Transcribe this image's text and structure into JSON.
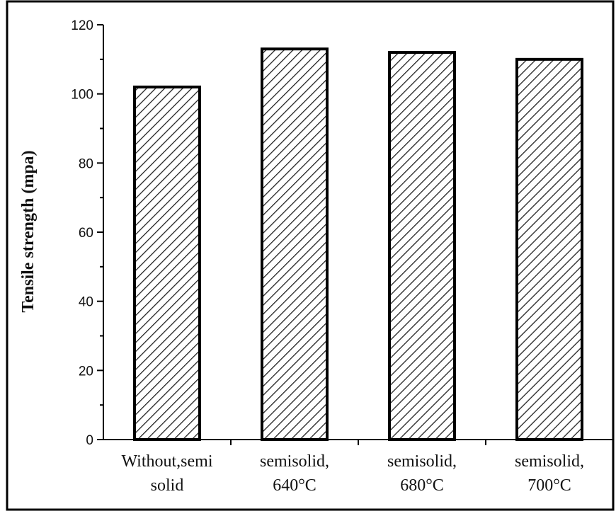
{
  "chart_data": {
    "type": "bar",
    "title": "",
    "xlabel": "",
    "ylabel": "Tensile strength (mpa)",
    "categories": [
      [
        "Without,semi",
        "solid"
      ],
      [
        "semisolid,",
        "640°C"
      ],
      [
        "semisolid,",
        "680°C"
      ],
      [
        "semisolid,",
        "700°C"
      ]
    ],
    "values": [
      102,
      113,
      112,
      110
    ],
    "ylim": [
      0,
      120
    ],
    "yticks": [
      0,
      20,
      40,
      60,
      80,
      100,
      120
    ],
    "grid": false,
    "legend": "none",
    "bar_fill": "diagonal hatch",
    "colors": {
      "bar_edge": "#000000",
      "hatch": "#222222",
      "bar_background": "#ffffff"
    }
  }
}
